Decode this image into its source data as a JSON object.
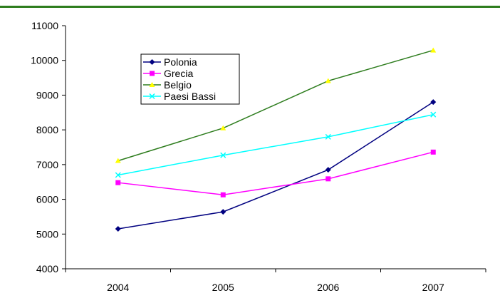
{
  "chart_data": {
    "type": "line",
    "categories": [
      "2004",
      "2005",
      "2006",
      "2007"
    ],
    "ylim": [
      4000,
      11000
    ],
    "yticks": [
      4000,
      5000,
      6000,
      7000,
      8000,
      9000,
      10000,
      11000
    ],
    "grid": false,
    "legend_position": "top-left",
    "series": [
      {
        "name": "Polonia",
        "values": [
          5150,
          5640,
          6850,
          8800
        ],
        "color": "#000080",
        "marker": "diamond"
      },
      {
        "name": "Grecia",
        "values": [
          6480,
          6130,
          6590,
          7360
        ],
        "color": "#ff00ff",
        "marker": "square"
      },
      {
        "name": "Belgio",
        "values": [
          7110,
          8050,
          9410,
          10290
        ],
        "color": "#2e7d1e",
        "marker_color": "#ffff00",
        "marker": "triangle"
      },
      {
        "name": "Paesi Bassi",
        "values": [
          6700,
          7270,
          7800,
          8440
        ],
        "color": "#00ffff",
        "marker": "x"
      }
    ]
  },
  "colors": {
    "top_rule": "#2e7d1e",
    "axis": "#000000"
  }
}
